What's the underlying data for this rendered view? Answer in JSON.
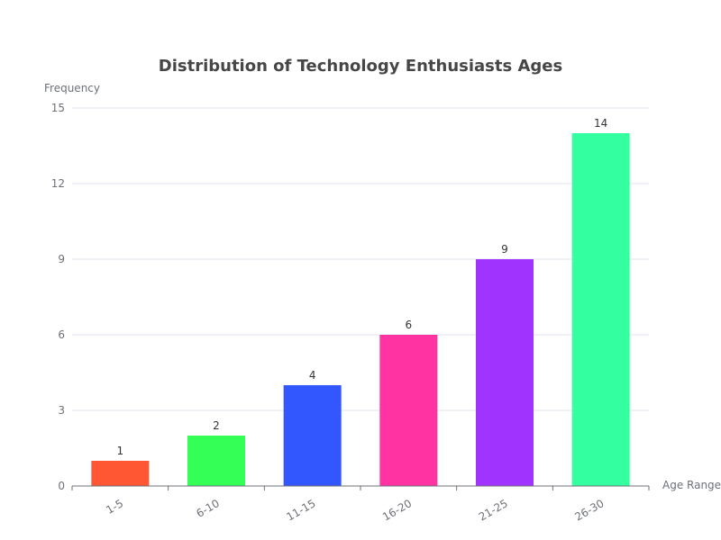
{
  "chart_data": {
    "type": "bar",
    "title": "Distribution of Technology Enthusiasts Ages",
    "xlabel": "Age Range",
    "ylabel": "Frequency",
    "categories": [
      "1-5",
      "6-10",
      "11-15",
      "16-20",
      "21-25",
      "26-30"
    ],
    "values": [
      1,
      2,
      4,
      6,
      9,
      14
    ],
    "colors": [
      "#ff5733",
      "#33ff57",
      "#3357ff",
      "#ff33a1",
      "#a133ff",
      "#33ffa1"
    ],
    "ylim": [
      0,
      15
    ],
    "yticks": [
      0,
      3,
      6,
      9,
      12,
      15
    ],
    "grid": true,
    "show_data_labels": true,
    "legend": "none"
  }
}
